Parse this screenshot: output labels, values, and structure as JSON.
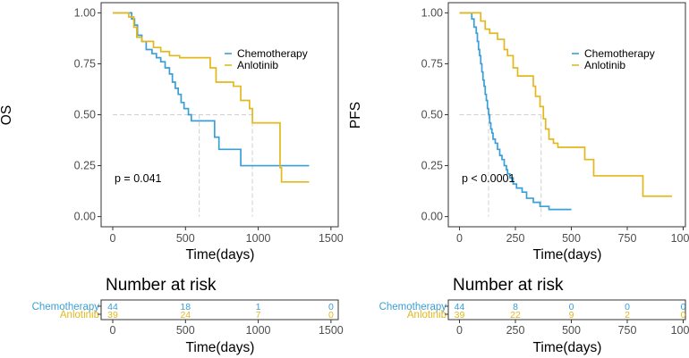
{
  "colors": {
    "chemo": "#3a9fd6",
    "anlotinib": "#e2b81c",
    "ref": "#cfcfcf",
    "frame": "#333333"
  },
  "chart_data": [
    {
      "type": "line",
      "subtype": "kaplan-meier",
      "ylabel": "OS",
      "xlabel": "Time(days)",
      "xlim": [
        -80,
        1550
      ],
      "ylim": [
        -0.05,
        1.05
      ],
      "xticks": [
        0,
        500,
        1000,
        1500
      ],
      "yticks": [
        "0.00",
        "0.25",
        "0.50",
        "0.75",
        "1.00"
      ],
      "pvalue_label": "p = 0.041",
      "legend": [
        "Chemotherapy",
        "Anlotinib"
      ],
      "medians": [
        595,
        960
      ],
      "series": [
        {
          "name": "Chemotherapy",
          "color_key": "chemo",
          "x": [
            0,
            130,
            150,
            170,
            200,
            230,
            270,
            300,
            330,
            360,
            390,
            410,
            430,
            450,
            470,
            490,
            520,
            540,
            595,
            700,
            730,
            880,
            1000,
            1350
          ],
          "y": [
            1.0,
            0.97,
            0.94,
            0.89,
            0.86,
            0.82,
            0.8,
            0.78,
            0.76,
            0.73,
            0.7,
            0.66,
            0.63,
            0.6,
            0.56,
            0.53,
            0.5,
            0.47,
            0.47,
            0.39,
            0.33,
            0.25,
            0.25,
            0.25
          ]
        },
        {
          "name": "Anlotinib",
          "color_key": "anlotinib",
          "x": [
            0,
            110,
            145,
            165,
            200,
            280,
            330,
            390,
            460,
            670,
            710,
            830,
            880,
            940,
            960,
            1150,
            1160,
            1350
          ],
          "y": [
            1.0,
            0.98,
            0.93,
            0.88,
            0.86,
            0.83,
            0.81,
            0.79,
            0.78,
            0.73,
            0.66,
            0.64,
            0.57,
            0.53,
            0.46,
            0.24,
            0.17,
            0.17
          ]
        }
      ],
      "risk_table": {
        "title": "Number at risk",
        "xticks": [
          0,
          500,
          1000,
          1500
        ],
        "rows": [
          {
            "name": "Chemotherapy",
            "color_key": "chemo",
            "values": [
              "44",
              "18",
              "1",
              "0"
            ]
          },
          {
            "name": "Anlotinib",
            "color_key": "anlotinib",
            "values": [
              "39",
              "24",
              "7",
              "0"
            ]
          }
        ]
      }
    },
    {
      "type": "line",
      "subtype": "kaplan-meier",
      "ylabel": "PFS",
      "xlabel": "Time(days)",
      "xlim": [
        -50,
        1010
      ],
      "ylim": [
        -0.05,
        1.05
      ],
      "xticks": [
        0,
        250,
        500,
        750,
        1000
      ],
      "yticks": [
        "0.00",
        "0.25",
        "0.50",
        "0.75",
        "1.00"
      ],
      "pvalue_label": "p < 0.0001",
      "legend": [
        "Chemotherapy",
        "Anlotinib"
      ],
      "medians": [
        130,
        365
      ],
      "series": [
        {
          "name": "Chemotherapy",
          "color_key": "chemo",
          "x": [
            0,
            55,
            65,
            75,
            80,
            85,
            90,
            95,
            100,
            105,
            110,
            115,
            120,
            125,
            130,
            135,
            140,
            145,
            150,
            160,
            170,
            180,
            190,
            200,
            210,
            215,
            225,
            240,
            255,
            280,
            300,
            330,
            360,
            400,
            500
          ],
          "y": [
            1.0,
            0.97,
            0.93,
            0.9,
            0.86,
            0.82,
            0.79,
            0.75,
            0.71,
            0.67,
            0.64,
            0.6,
            0.57,
            0.53,
            0.5,
            0.46,
            0.43,
            0.41,
            0.38,
            0.36,
            0.33,
            0.3,
            0.28,
            0.25,
            0.23,
            0.21,
            0.19,
            0.16,
            0.14,
            0.12,
            0.09,
            0.07,
            0.05,
            0.035,
            0.035
          ]
        },
        {
          "name": "Anlotinib",
          "color_key": "anlotinib",
          "x": [
            0,
            95,
            115,
            135,
            170,
            200,
            215,
            240,
            260,
            330,
            340,
            360,
            375,
            385,
            400,
            420,
            440,
            560,
            600,
            820,
            950
          ],
          "y": [
            1.0,
            0.96,
            0.92,
            0.9,
            0.87,
            0.82,
            0.79,
            0.73,
            0.69,
            0.64,
            0.59,
            0.54,
            0.48,
            0.43,
            0.38,
            0.36,
            0.34,
            0.28,
            0.2,
            0.1,
            0.1
          ]
        }
      ],
      "risk_table": {
        "title": "Number at risk",
        "xticks": [
          0,
          250,
          500,
          750,
          1000
        ],
        "rows": [
          {
            "name": "Chemotherapy",
            "color_key": "chemo",
            "values": [
              "44",
              "8",
              "0",
              "0",
              "0"
            ]
          },
          {
            "name": "Anlotinib",
            "color_key": "anlotinib",
            "values": [
              "39",
              "22",
              "9",
              "2",
              "0"
            ]
          }
        ]
      }
    }
  ]
}
